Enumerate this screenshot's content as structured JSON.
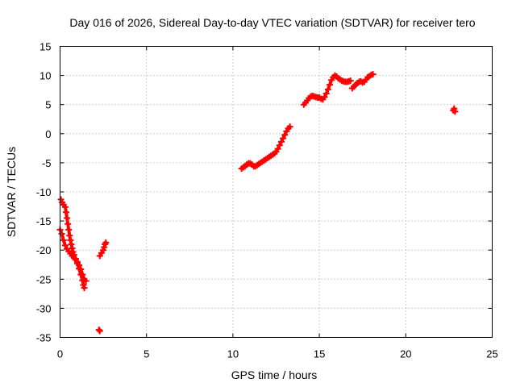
{
  "chart_data": {
    "type": "scatter",
    "title": "Day 016 of 2026, Sidereal Day-to-day VTEC variation (SDTVAR) for receiver tero",
    "xlabel": "GPS time / hours",
    "ylabel": "SDTVAR / TECUs",
    "xlim": [
      0,
      25
    ],
    "ylim": [
      -35,
      15
    ],
    "xticks": [
      0,
      5,
      10,
      15,
      20,
      25
    ],
    "yticks": [
      -35,
      -30,
      -25,
      -20,
      -15,
      -10,
      -5,
      0,
      5,
      10,
      15
    ],
    "xtick_labels": [
      "0",
      "5",
      "10",
      "15",
      "20",
      "25"
    ],
    "ytick_labels": [
      "-35",
      "-30",
      "-25",
      "-20",
      "-15",
      "-10",
      "-5",
      "0",
      "5",
      "10",
      "15"
    ],
    "grid": true,
    "series": [
      {
        "name": "SDTVAR",
        "color": "#ff0000",
        "marker": "plus",
        "segments": [
          [
            [
              0.0,
              -16.5
            ],
            [
              0.1,
              -17.2
            ],
            [
              0.2,
              -18.3
            ],
            [
              0.3,
              -19.2
            ],
            [
              0.4,
              -19.8
            ],
            [
              0.5,
              -20.2
            ],
            [
              0.6,
              -20.6
            ],
            [
              0.7,
              -21.0
            ],
            [
              0.8,
              -21.3
            ],
            [
              0.9,
              -21.6
            ],
            [
              1.0,
              -22.0
            ],
            [
              1.1,
              -22.6
            ],
            [
              1.2,
              -23.3
            ],
            [
              1.3,
              -24.2
            ],
            [
              1.4,
              -25.0
            ],
            [
              1.5,
              -25.3
            ]
          ],
          [
            [
              0.05,
              -11.3
            ],
            [
              0.12,
              -11.8
            ],
            [
              0.2,
              -12.2
            ],
            [
              0.3,
              -12.6
            ],
            [
              0.35,
              -13.5
            ],
            [
              0.4,
              -14.5
            ],
            [
              0.45,
              -15.5
            ],
            [
              0.5,
              -16.5
            ],
            [
              0.55,
              -17.5
            ],
            [
              0.6,
              -18.3
            ],
            [
              0.65,
              -19.0
            ],
            [
              0.7,
              -19.7
            ],
            [
              0.75,
              -20.3
            ],
            [
              0.8,
              -20.8
            ],
            [
              0.9,
              -21.5
            ],
            [
              1.0,
              -22.3
            ],
            [
              1.1,
              -23.2
            ],
            [
              1.2,
              -24.2
            ],
            [
              1.3,
              -25.2
            ],
            [
              1.35,
              -26.0
            ],
            [
              1.4,
              -26.5
            ]
          ],
          [
            [
              2.25,
              -33.7
            ],
            [
              2.3,
              -33.9
            ]
          ],
          [
            [
              2.3,
              -21.0
            ],
            [
              2.4,
              -20.5
            ],
            [
              2.5,
              -20.0
            ],
            [
              2.55,
              -19.5
            ],
            [
              2.6,
              -19.0
            ],
            [
              2.65,
              -18.7
            ]
          ],
          [
            [
              10.5,
              -6.0
            ],
            [
              10.6,
              -5.8
            ],
            [
              10.7,
              -5.6
            ],
            [
              10.8,
              -5.3
            ],
            [
              10.9,
              -5.1
            ],
            [
              11.0,
              -5.1
            ],
            [
              11.1,
              -5.3
            ],
            [
              11.2,
              -5.6
            ],
            [
              11.3,
              -5.6
            ],
            [
              11.4,
              -5.4
            ],
            [
              11.5,
              -5.2
            ],
            [
              11.6,
              -5.0
            ],
            [
              11.7,
              -4.8
            ],
            [
              11.8,
              -4.6
            ],
            [
              11.9,
              -4.4
            ],
            [
              12.0,
              -4.2
            ],
            [
              12.1,
              -4.0
            ],
            [
              12.2,
              -3.8
            ],
            [
              12.3,
              -3.6
            ],
            [
              12.4,
              -3.4
            ],
            [
              12.5,
              -3.1
            ],
            [
              12.6,
              -2.6
            ],
            [
              12.7,
              -2.0
            ],
            [
              12.8,
              -1.4
            ],
            [
              12.9,
              -0.8
            ],
            [
              13.0,
              -0.2
            ],
            [
              13.1,
              0.4
            ],
            [
              13.2,
              0.9
            ],
            [
              13.3,
              1.2
            ]
          ],
          [
            [
              14.1,
              5.0
            ],
            [
              14.2,
              5.3
            ],
            [
              14.3,
              5.7
            ],
            [
              14.4,
              6.1
            ],
            [
              14.5,
              6.4
            ],
            [
              14.6,
              6.5
            ],
            [
              14.7,
              6.4
            ],
            [
              14.8,
              6.3
            ],
            [
              14.9,
              6.2
            ],
            [
              15.0,
              6.2
            ],
            [
              15.1,
              6.0
            ],
            [
              15.2,
              5.9
            ],
            [
              15.3,
              6.3
            ],
            [
              15.4,
              6.9
            ],
            [
              15.5,
              7.6
            ],
            [
              15.6,
              8.4
            ],
            [
              15.7,
              9.2
            ],
            [
              15.8,
              9.7
            ],
            [
              15.9,
              10.0
            ],
            [
              16.0,
              9.8
            ],
            [
              16.1,
              9.5
            ],
            [
              16.2,
              9.3
            ],
            [
              16.3,
              9.1
            ],
            [
              16.4,
              9.0
            ],
            [
              16.5,
              8.9
            ],
            [
              16.6,
              8.9
            ],
            [
              16.7,
              9.0
            ],
            [
              16.8,
              9.1
            ]
          ],
          [
            [
              16.9,
              7.8
            ],
            [
              17.0,
              8.1
            ],
            [
              17.1,
              8.4
            ],
            [
              17.2,
              8.7
            ],
            [
              17.3,
              8.9
            ],
            [
              17.4,
              9.0
            ],
            [
              17.5,
              8.8
            ],
            [
              17.6,
              8.9
            ],
            [
              17.7,
              9.3
            ],
            [
              17.8,
              9.7
            ],
            [
              17.9,
              9.9
            ],
            [
              18.0,
              10.1
            ],
            [
              18.1,
              10.2
            ]
          ],
          [
            [
              22.75,
              4.0
            ],
            [
              22.8,
              4.3
            ],
            [
              22.85,
              3.8
            ]
          ]
        ]
      }
    ]
  }
}
